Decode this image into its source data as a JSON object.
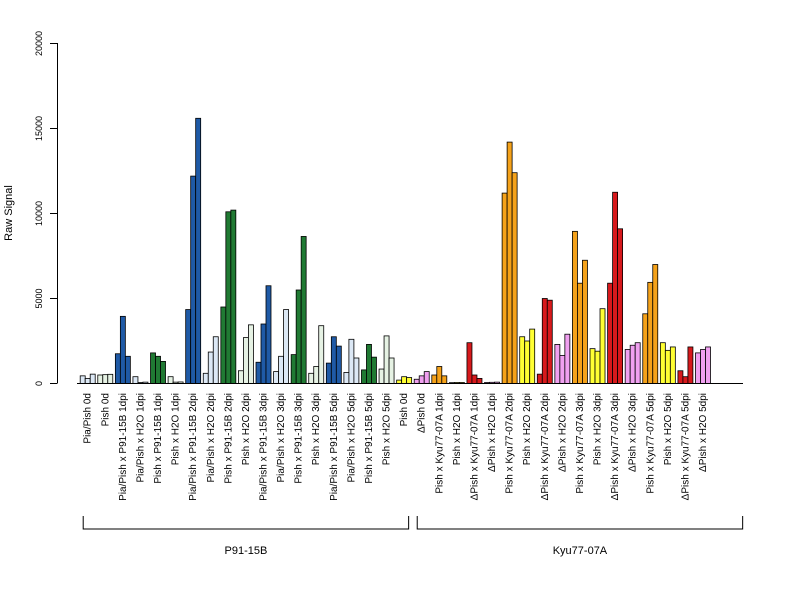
{
  "chart_data": {
    "type": "bar",
    "ylabel": "Raw Signal",
    "ylim": [
      0,
      20000
    ],
    "yticks": [
      0,
      5000,
      10000,
      15000,
      20000
    ],
    "groups": [
      {
        "label": "P91-15B",
        "first": 0,
        "last": 18
      },
      {
        "label": "Kyu77-07A",
        "first": 19,
        "last": 37
      }
    ],
    "colors": {
      "lightblue": "#dce8f5",
      "blue": "#1f5aa6",
      "lightgreen": "#e6f2e4",
      "green": "#207a33",
      "yellow": "#ffff33",
      "orange": "#f5a21a",
      "pink": "#f0a0f0",
      "red": "#d7191c"
    },
    "categories": [
      {
        "label": "Pia/Pish 0d",
        "color": "lightblue",
        "values": [
          450,
          300,
          550
        ]
      },
      {
        "label": "Pish 0d",
        "color": "lightgreen",
        "values": [
          500,
          520,
          540
        ]
      },
      {
        "label": "Pia/Pish x P91-15B 1dpi",
        "color": "blue",
        "values": [
          1750,
          3950,
          1600
        ]
      },
      {
        "label": "Pia/Pish x H2O 1dpi",
        "color": "lightblue",
        "values": [
          400,
          60,
          80
        ]
      },
      {
        "label": "Pish x P91-15B 1dpi",
        "color": "green",
        "values": [
          1800,
          1600,
          1300
        ]
      },
      {
        "label": "Pish x H2O 1dpi",
        "color": "lightgreen",
        "values": [
          400,
          80,
          90
        ]
      },
      {
        "label": "Pia/Pish x P91-15B 2dpi",
        "color": "blue",
        "values": [
          4350,
          12200,
          15600
        ]
      },
      {
        "label": "Pia/Pish x H2O 2dpi",
        "color": "lightblue",
        "values": [
          600,
          1850,
          2750
        ]
      },
      {
        "label": "Pish x P91-15B 2dpi",
        "color": "green",
        "values": [
          4500,
          10100,
          10200
        ]
      },
      {
        "label": "Pish x H2O 2dpi",
        "color": "lightgreen",
        "values": [
          750,
          2700,
          3450
        ]
      },
      {
        "label": "Pia/Pish x P91-15B 3dpi",
        "color": "blue",
        "values": [
          1250,
          3500,
          5750
        ]
      },
      {
        "label": "Pia/Pish x H2O 3dpi",
        "color": "lightblue",
        "values": [
          700,
          1600,
          4350
        ]
      },
      {
        "label": "Pish x P91-15B 3dpi",
        "color": "green",
        "values": [
          1700,
          5500,
          8650
        ]
      },
      {
        "label": "Pish x H2O 3dpi",
        "color": "lightgreen",
        "values": [
          600,
          1000,
          3400
        ]
      },
      {
        "label": "Pia/Pish x P91-15B 5dpi",
        "color": "blue",
        "values": [
          1200,
          2750,
          2200
        ]
      },
      {
        "label": "Pia/Pish x H2O 5dpi",
        "color": "lightblue",
        "values": [
          650,
          2600,
          1500
        ]
      },
      {
        "label": "Pish x P91-15B 5dpi",
        "color": "green",
        "values": [
          800,
          2300,
          1550
        ]
      },
      {
        "label": "Pish x H2O 5dpi",
        "color": "lightgreen",
        "values": [
          850,
          2800,
          1500
        ]
      },
      {
        "label": "Pish 0d",
        "color": "yellow",
        "values": [
          200,
          400,
          350
        ]
      },
      {
        "label": "ΔPish 0d",
        "color": "pink",
        "values": [
          250,
          450,
          700
        ]
      },
      {
        "label": "Pish x Kyu77-07A 1dpi",
        "color": "orange",
        "values": [
          500,
          1000,
          450
        ]
      },
      {
        "label": "Pish x H2O 1dpi",
        "color": "yellow",
        "values": [
          50,
          60,
          60
        ]
      },
      {
        "label": "ΔPish x Kyu77-07A 1dpi",
        "color": "red",
        "values": [
          2400,
          500,
          300
        ]
      },
      {
        "label": "ΔPish x H2O 1dpi",
        "color": "pink",
        "values": [
          60,
          70,
          80
        ]
      },
      {
        "label": "Pish x Kyu77-07A 2dpi",
        "color": "orange",
        "values": [
          11200,
          14200,
          12400
        ]
      },
      {
        "label": "Pish x H2O 2dpi",
        "color": "yellow",
        "values": [
          2750,
          2500,
          3200
        ]
      },
      {
        "label": "ΔPish x Kyu77-07A 2dpi",
        "color": "red",
        "values": [
          550,
          5000,
          4900
        ]
      },
      {
        "label": "ΔPish x H2O 2dpi",
        "color": "pink",
        "values": [
          2300,
          1650,
          2900
        ]
      },
      {
        "label": "Pish x Kyu77-07A 3dpi",
        "color": "orange",
        "values": [
          8950,
          5900,
          7250
        ]
      },
      {
        "label": "Pish x H2O 3dpi",
        "color": "yellow",
        "values": [
          2050,
          1900,
          4400
        ]
      },
      {
        "label": "ΔPish x Kyu77-07A 3dpi",
        "color": "red",
        "values": [
          5900,
          11250,
          9100
        ]
      },
      {
        "label": "ΔPish x H2O 3dpi",
        "color": "pink",
        "values": [
          2000,
          2250,
          2400
        ]
      },
      {
        "label": "Pish x Kyu77-07A 5dpi",
        "color": "orange",
        "values": [
          4100,
          5950,
          7000
        ]
      },
      {
        "label": "Pish x H2O 5dpi",
        "color": "yellow",
        "values": [
          2400,
          1950,
          2150
        ]
      },
      {
        "label": "ΔPish x Kyu77-07A 5dpi",
        "color": "red",
        "values": [
          750,
          400,
          2150
        ]
      },
      {
        "label": "ΔPish x H2O 5dpi",
        "color": "pink",
        "values": [
          1800,
          2000,
          2150
        ]
      }
    ]
  }
}
